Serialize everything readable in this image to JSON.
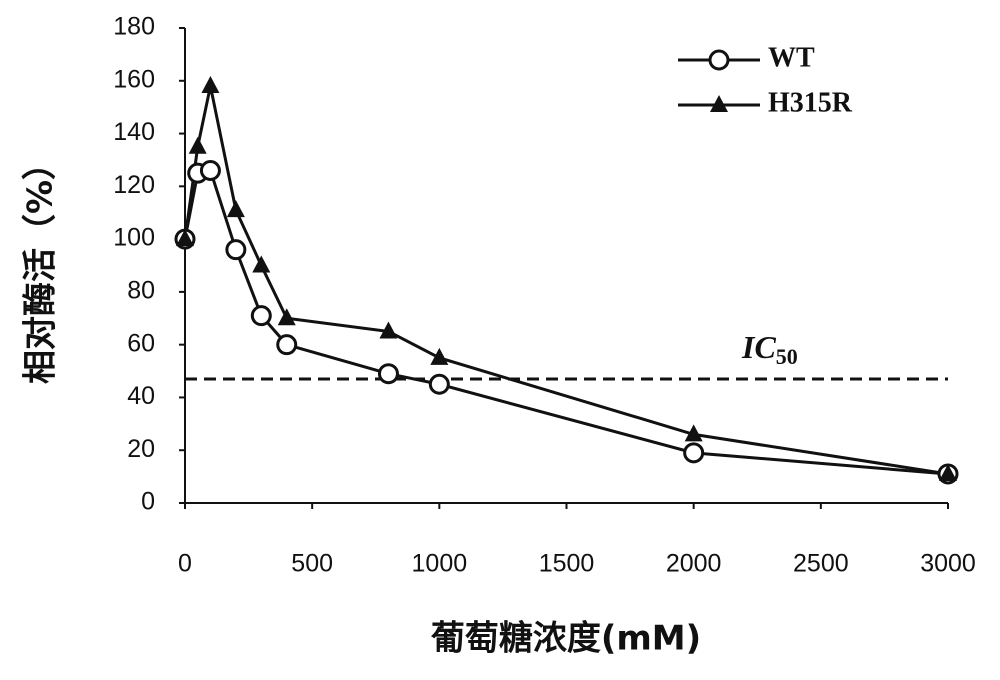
{
  "chart_data": {
    "type": "line",
    "x_label": "葡萄糖浓度(mM)",
    "y_label": "相对酶活（%）",
    "x": [
      0,
      50,
      100,
      200,
      300,
      400,
      800,
      1000,
      2000,
      3000
    ],
    "series": [
      {
        "name": "WT",
        "color": "#111111",
        "marker": "circle",
        "values": [
          100,
          125,
          126,
          96,
          71,
          60,
          49,
          45,
          19,
          11
        ]
      },
      {
        "name": "H315R",
        "color": "#111111",
        "marker": "triangle",
        "values": [
          100,
          135,
          158,
          111,
          90,
          70,
          65,
          55,
          26,
          11
        ]
      }
    ],
    "reference_line": {
      "value": 47,
      "label": "IC",
      "label_subscript": "50"
    },
    "xlim": [
      0,
      3000
    ],
    "xticks": [
      0,
      500,
      1000,
      1500,
      2000,
      2500,
      3000
    ],
    "ylim": [
      0,
      180
    ],
    "yticks": [
      0,
      20,
      40,
      60,
      80,
      100,
      120,
      140,
      160,
      180
    ],
    "grid": false,
    "legend_position": "upper-right"
  }
}
